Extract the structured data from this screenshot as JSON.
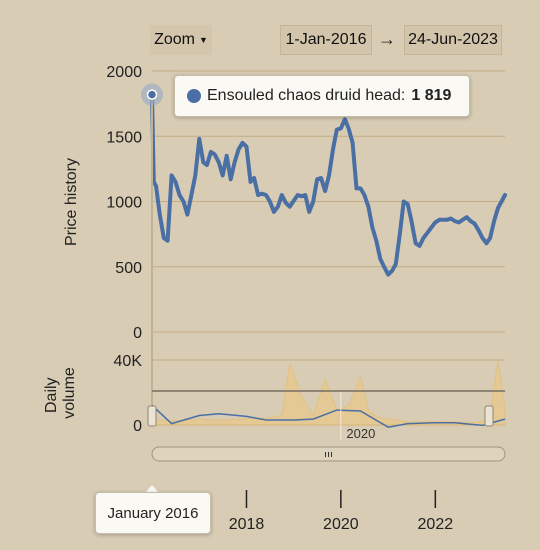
{
  "controls": {
    "zoom_label": "Zoom",
    "date_from": "1-Jan-2016",
    "date_arrow": "→",
    "date_to": "24-Jun-2023"
  },
  "tooltip": {
    "series_name": "Ensouled chaos druid head:",
    "value": "1 819"
  },
  "navigator_tooltip": "January 2016",
  "colors": {
    "background": "#d8ccb4",
    "price_line": "#4a6fa5",
    "volume_area": "#f0c87a",
    "grid": "#c4ab86"
  },
  "chart_data": [
    {
      "type": "line",
      "ylabel": "Price history",
      "ylim": [
        0,
        2000
      ],
      "yticks": [
        "0",
        "500",
        "1000",
        "1500",
        "2000"
      ],
      "xlim": [
        "2016-01-01",
        "2023-06-24"
      ],
      "xticks": [
        "2018",
        "2020",
        "2022"
      ],
      "grid": true,
      "series": [
        {
          "name": "Ensouled chaos druid head",
          "x": [
            "2016-01-01",
            "2016-01-15",
            "2016-02-01",
            "2016-03-01",
            "2016-04-01",
            "2016-05-01",
            "2016-06-01",
            "2016-07-01",
            "2016-08-01",
            "2016-09-01",
            "2016-10-01",
            "2016-11-01",
            "2016-12-01",
            "2017-01-01",
            "2017-02-01",
            "2017-03-01",
            "2017-04-01",
            "2017-05-01",
            "2017-06-01",
            "2017-07-01",
            "2017-08-01",
            "2017-09-01",
            "2017-10-01",
            "2017-11-01",
            "2017-12-01",
            "2018-01-01",
            "2018-02-01",
            "2018-03-01",
            "2018-04-01",
            "2018-05-01",
            "2018-06-01",
            "2018-07-01",
            "2018-08-01",
            "2018-09-01",
            "2018-10-01",
            "2018-11-01",
            "2018-12-01",
            "2019-02-01",
            "2019-03-01",
            "2019-04-01",
            "2019-05-01",
            "2019-06-01",
            "2019-07-01",
            "2019-08-01",
            "2019-09-01",
            "2019-10-01",
            "2019-11-01",
            "2019-12-01",
            "2020-01-01",
            "2020-02-01",
            "2020-03-01",
            "2020-04-01",
            "2020-05-01",
            "2020-06-01",
            "2020-07-01",
            "2020-08-01",
            "2020-09-01",
            "2020-10-01",
            "2020-11-01",
            "2020-12-01",
            "2021-01-01",
            "2021-02-01",
            "2021-03-01",
            "2021-04-01",
            "2021-05-01",
            "2021-06-01",
            "2021-07-01",
            "2021-08-01",
            "2021-09-01",
            "2021-10-01",
            "2021-11-01",
            "2021-12-01",
            "2022-01-01",
            "2022-02-01",
            "2022-03-01",
            "2022-04-01",
            "2022-05-01",
            "2022-06-01",
            "2022-07-01",
            "2022-08-01",
            "2022-09-01",
            "2022-10-01",
            "2022-11-01",
            "2022-12-01",
            "2023-01-01",
            "2023-02-01",
            "2023-03-01",
            "2023-04-01",
            "2023-05-01",
            "2023-06-24"
          ],
          "y": [
            1819,
            1150,
            1120,
            900,
            720,
            700,
            1200,
            1150,
            1050,
            1000,
            900,
            1050,
            1200,
            1480,
            1300,
            1280,
            1380,
            1360,
            1300,
            1200,
            1350,
            1170,
            1300,
            1400,
            1450,
            1420,
            1150,
            1180,
            1050,
            1060,
            1050,
            1000,
            920,
            960,
            1050,
            990,
            960,
            1050,
            1040,
            1050,
            920,
            1000,
            1170,
            1180,
            1080,
            1200,
            1400,
            1550,
            1560,
            1630,
            1560,
            1450,
            1100,
            1100,
            1050,
            960,
            800,
            700,
            560,
            500,
            440,
            470,
            520,
            750,
            1000,
            980,
            850,
            680,
            660,
            720,
            760,
            800,
            840,
            860,
            860,
            860,
            870,
            850,
            840,
            860,
            880,
            850,
            830,
            780,
            720,
            680,
            720,
            850,
            950,
            1050
          ]
        }
      ]
    },
    {
      "type": "area",
      "ylabel": "Daily volume",
      "ylim": [
        0,
        40000
      ],
      "yticks": [
        "0",
        "40K"
      ],
      "grid": true,
      "series": [
        {
          "name": "Daily volume",
          "x": [
            "2016-01-01",
            "2016-07-01",
            "2017-01-01",
            "2017-07-01",
            "2018-01-01",
            "2018-07-01",
            "2018-10-01",
            "2018-12-01",
            "2019-03-01",
            "2019-06-01",
            "2019-09-01",
            "2019-12-01",
            "2020-03-01",
            "2020-06-01",
            "2020-08-01",
            "2020-10-01",
            "2020-12-01",
            "2021-03-01",
            "2021-06-01",
            "2021-09-01",
            "2022-01-01",
            "2022-06-01",
            "2022-09-01",
            "2023-01-01",
            "2023-03-01",
            "2023-05-01",
            "2023-06-24"
          ],
          "y": [
            3000,
            2500,
            3500,
            3000,
            4000,
            4500,
            6000,
            38000,
            18000,
            6000,
            28000,
            9000,
            12000,
            30000,
            9000,
            5000,
            4000,
            3000,
            2000,
            2000,
            2000,
            2000,
            1500,
            2000,
            6000,
            40000,
            10000
          ]
        }
      ]
    },
    {
      "type": "line",
      "title": "",
      "xticks": [
        "2020"
      ],
      "series": [
        {
          "name": "Navigator",
          "x": [
            "2016-01-01",
            "2016-06-01",
            "2017-01-01",
            "2017-06-01",
            "2018-01-01",
            "2018-06-01",
            "2019-01-01",
            "2019-06-01",
            "2019-12-01",
            "2020-06-01",
            "2021-01-01",
            "2021-06-01",
            "2022-01-01",
            "2022-06-01",
            "2023-01-01",
            "2023-06-24"
          ],
          "y": [
            1819,
            800,
            1250,
            1350,
            1200,
            1000,
            1000,
            1050,
            1550,
            1500,
            600,
            800,
            850,
            850,
            700,
            1050
          ]
        }
      ]
    }
  ]
}
